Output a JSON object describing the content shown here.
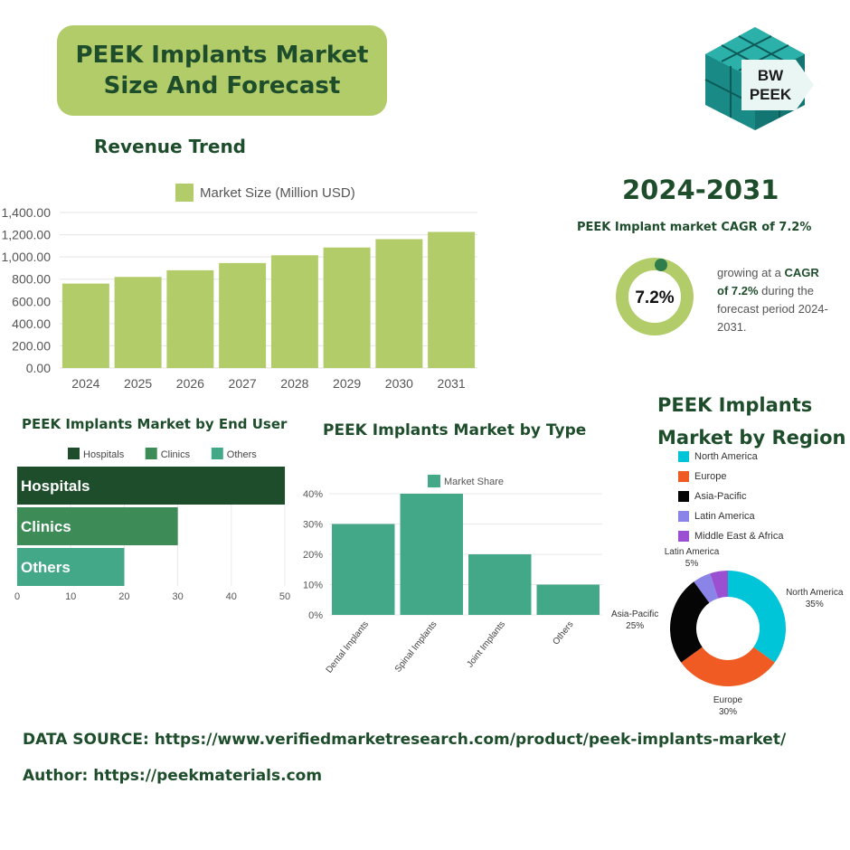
{
  "title": "PEEK Implants Market\nSize And Forecast",
  "logo": {
    "line1": "BW",
    "line2": "PEEK"
  },
  "revenue": {
    "heading": "Revenue Trend",
    "legend": "Market Size (Million USD)",
    "color": "#b2cc6a"
  },
  "period": "2024-2031",
  "cagr": {
    "heading": "PEEK Implant market CAGR of 7.2%",
    "value_label": "7.2%",
    "value": 7.2,
    "ring_color": "#b2cc6a",
    "dot_color": "#2e7d4a",
    "desc_pre": "growing at a ",
    "desc_bold1": "CAGR",
    "desc_bold2": "of 7.2%",
    "desc_post": " during the forecast period 2024-2031."
  },
  "end_user": {
    "heading": "PEEK Implants Market by End User"
  },
  "type_chart_meta": {
    "heading": "PEEK Implants Market by Type"
  },
  "region_meta": {
    "heading_line1": "PEEK Implants",
    "heading_line2": "Market by Region"
  },
  "footer": {
    "source": "DATA SOURCE: https://www.verifiedmarketresearch.com/product/peek-implants-market/",
    "author": "Author: https://peekmaterials.com"
  },
  "chart_data": [
    {
      "type": "bar",
      "title": "Revenue Trend",
      "categories": [
        "2024",
        "2025",
        "2026",
        "2027",
        "2028",
        "2029",
        "2030",
        "2031"
      ],
      "series": [
        {
          "name": "Market Size (Million USD)",
          "values": [
            760,
            820,
            880,
            945,
            1015,
            1085,
            1160,
            1225
          ]
        }
      ],
      "ylim": [
        0,
        1400
      ],
      "yticks": [
        "0.00",
        "200.00",
        "400.00",
        "600.00",
        "800.00",
        "1,000.00",
        "1,200.00",
        "1,400.00"
      ],
      "grid": true,
      "legend": "top"
    },
    {
      "type": "bar",
      "orientation": "horizontal",
      "title": "PEEK Implants Market by End User",
      "categories": [
        "Hospitals",
        "Clinics",
        "Others"
      ],
      "values": [
        50,
        30,
        20
      ],
      "colors": [
        "#1e4d2b",
        "#3d8b57",
        "#43a887"
      ],
      "xlim": [
        0,
        50
      ],
      "xticks": [
        "0",
        "10",
        "20",
        "30",
        "40",
        "50"
      ],
      "grid": true,
      "legend": "top"
    },
    {
      "type": "bar",
      "title": "PEEK Implants Market by Type",
      "categories": [
        "Dental Implants",
        "Spinal Implants",
        "Joint Implants",
        "Others"
      ],
      "series": [
        {
          "name": "Market Share",
          "values": [
            30,
            40,
            20,
            10
          ]
        }
      ],
      "color": "#43a887",
      "ylim": [
        0,
        40
      ],
      "yticks": [
        "0%",
        "10%",
        "20%",
        "30%",
        "40%"
      ],
      "grid": true,
      "legend": "top"
    },
    {
      "type": "pie",
      "title": "PEEK Implants Market by Region",
      "categories": [
        "North America",
        "Europe",
        "Asia-Pacific",
        "Latin America",
        "Middle East & Africa"
      ],
      "values": [
        35,
        30,
        25,
        5,
        5
      ],
      "colors": [
        "#00c5d8",
        "#f05a23",
        "#050505",
        "#8a84e8",
        "#9b4fd1"
      ],
      "slice_labels": [
        {
          "name": "North America",
          "pct": "35%"
        },
        {
          "name": "Europe",
          "pct": "30%"
        },
        {
          "name": "Asia-Pacific",
          "pct": "25%"
        },
        {
          "name": "Latin America",
          "pct": "5%"
        }
      ],
      "donut": true,
      "legend": "top-left"
    }
  ]
}
